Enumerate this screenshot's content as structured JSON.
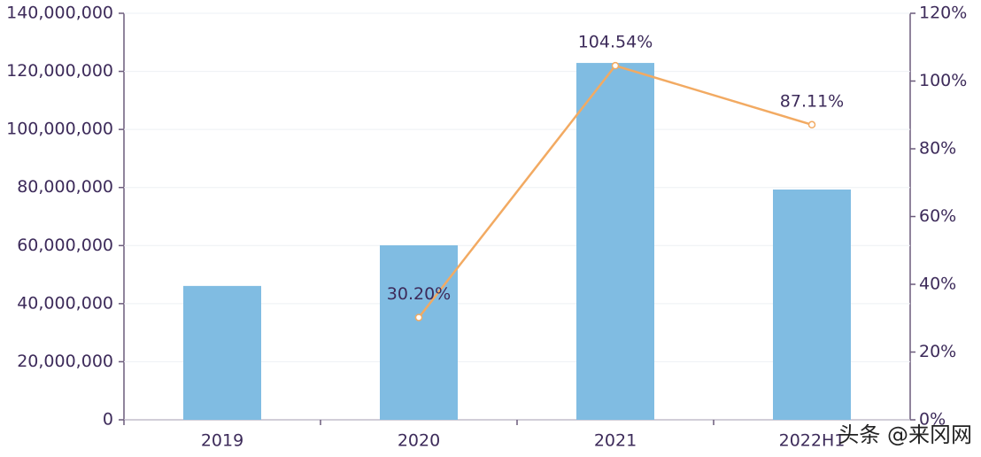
{
  "chart_data": {
    "type": "bar",
    "categories": [
      "2019",
      "2020",
      "2021",
      "2022H1"
    ],
    "series": [
      {
        "type": "bar",
        "color": "#80bce2",
        "values": [
          46100000,
          60100000,
          122900000,
          79300000
        ]
      },
      {
        "type": "line",
        "axis": "y2",
        "color": "#f2aa62",
        "values": [
          null,
          30.2,
          104.54,
          87.11
        ],
        "value_labels": [
          null,
          "30.20%",
          "104.54%",
          "87.11%"
        ]
      }
    ],
    "ylim": [
      0,
      140000000
    ],
    "yticks": [
      {
        "value": 0,
        "label": "0"
      },
      {
        "value": 20000000,
        "label": "20,000,000"
      },
      {
        "value": 40000000,
        "label": "40,000,000"
      },
      {
        "value": 60000000,
        "label": "60,000,000"
      },
      {
        "value": 80000000,
        "label": "80,000,000"
      },
      {
        "value": 100000000,
        "label": "100,000,000"
      },
      {
        "value": 120000000,
        "label": "120,000,000"
      },
      {
        "value": 140000000,
        "label": "140,000,000"
      }
    ],
    "y2lim": [
      0,
      120
    ],
    "y2ticks": [
      {
        "value": 0,
        "label": "0%"
      },
      {
        "value": 20,
        "label": "20%"
      },
      {
        "value": 40,
        "label": "40%"
      },
      {
        "value": 60,
        "label": "60%"
      },
      {
        "value": 80,
        "label": "80%"
      },
      {
        "value": 100,
        "label": "100%"
      },
      {
        "value": 120,
        "label": "120%"
      }
    ],
    "grid": true,
    "watermark": "头条 @来冈网"
  }
}
